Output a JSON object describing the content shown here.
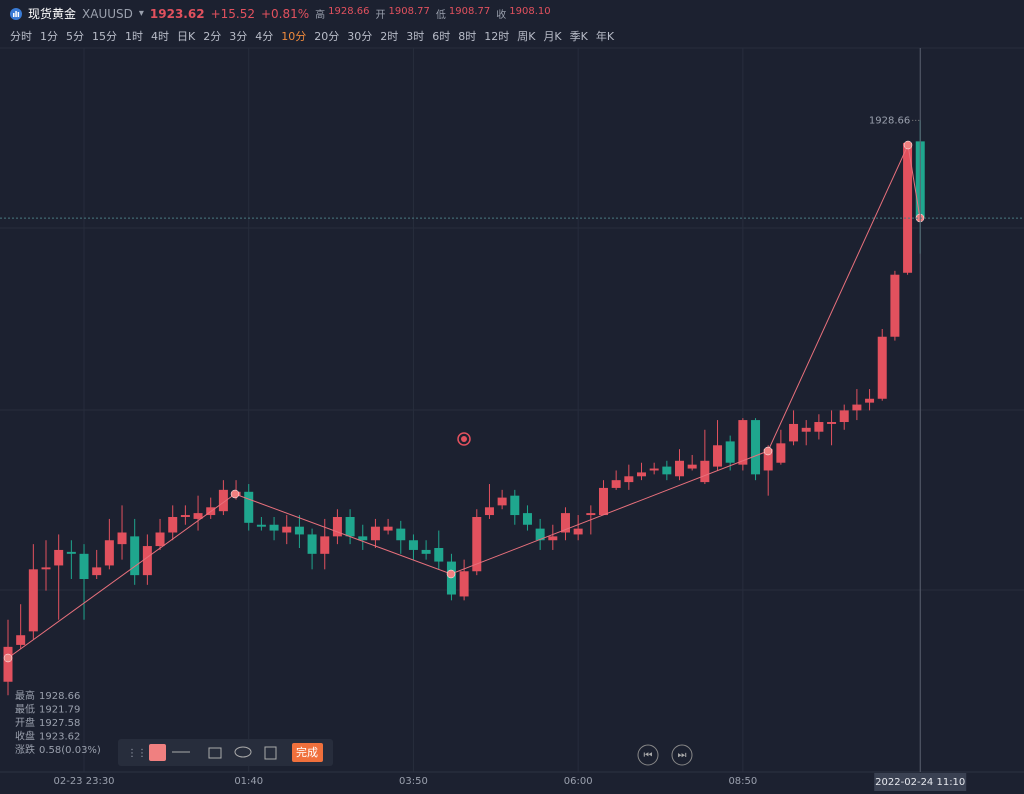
{
  "header": {
    "name": "现货黄金",
    "symbol": "XAUUSD",
    "price": "1923.62",
    "change": "+15.52",
    "change_pct": "+0.81%",
    "stats": [
      {
        "label": "高",
        "value": "1928.66"
      },
      {
        "label": "开",
        "value": "1908.77"
      },
      {
        "label": "低",
        "value": "1908.77"
      },
      {
        "label": "收",
        "value": "1908.10"
      }
    ]
  },
  "timeframes": {
    "items": [
      "分时",
      "1分",
      "5分",
      "15分",
      "1时",
      "4时",
      "日K",
      "2分",
      "3分",
      "4分",
      "10分",
      "20分",
      "30分",
      "2时",
      "3时",
      "6时",
      "8时",
      "12时",
      "周K",
      "月K",
      "季K",
      "年K"
    ],
    "active": 10
  },
  "chart_data": {
    "type": "candlestick",
    "up_color": "#e2515e",
    "down_color": "#1fa68e",
    "ylim": [
      1898.5,
      1932.5
    ],
    "high_label": "1928.66",
    "categories": [
      null,
      null,
      null,
      null,
      null,
      null,
      "02-23 23:30",
      null,
      null,
      null,
      null,
      null,
      null,
      null,
      null,
      null,
      null,
      null,
      null,
      "01:40",
      null,
      null,
      null,
      null,
      null,
      null,
      null,
      null,
      null,
      null,
      null,
      null,
      "03:50",
      null,
      null,
      null,
      null,
      null,
      null,
      null,
      null,
      null,
      null,
      null,
      null,
      "06:00",
      null,
      null,
      null,
      null,
      null,
      null,
      null,
      null,
      null,
      null,
      null,
      null,
      "08:50",
      null,
      null,
      null,
      null,
      null,
      null,
      null,
      null,
      null,
      null,
      null,
      null,
      null,
      "2022-02-24 11:10"
    ],
    "candles": {
      "open": [
        1899.7,
        1901.6,
        1902.3,
        1905.5,
        1905.7,
        1906.4,
        1906.3,
        1905.2,
        1905.7,
        1906.8,
        1907.2,
        1905.2,
        1906.7,
        1907.4,
        1908.2,
        1908.1,
        1908.3,
        1908.5,
        1909.3,
        1909.5,
        1907.8,
        1907.8,
        1907.4,
        1907.7,
        1907.3,
        1906.3,
        1907.2,
        1908.2,
        1907.2,
        1907.0,
        1907.5,
        1907.6,
        1907.0,
        1906.5,
        1906.6,
        1905.9,
        1904.1,
        1905.4,
        1908.3,
        1908.8,
        1909.3,
        1908.4,
        1907.6,
        1907.0,
        1907.4,
        1907.3,
        1908.3,
        1908.3,
        1909.7,
        1910.0,
        1910.3,
        1910.6,
        1910.8,
        1910.3,
        1910.7,
        1910.0,
        1910.8,
        1912.1,
        1910.9,
        1913.2,
        1910.6,
        1911.0,
        1912.1,
        1912.6,
        1912.6,
        1913.0,
        1913.1,
        1913.7,
        1914.1,
        1914.3,
        1917.5,
        1920.8,
        1927.58
      ],
      "close": [
        1901.5,
        1902.1,
        1905.5,
        1905.6,
        1906.5,
        1906.3,
        1905.0,
        1905.6,
        1907.0,
        1907.4,
        1905.2,
        1906.7,
        1907.4,
        1908.2,
        1908.3,
        1908.4,
        1908.7,
        1909.6,
        1909.5,
        1907.9,
        1907.7,
        1907.5,
        1907.7,
        1907.3,
        1906.3,
        1907.2,
        1908.2,
        1907.2,
        1907.0,
        1907.7,
        1907.7,
        1907.0,
        1906.5,
        1906.3,
        1905.9,
        1904.2,
        1905.4,
        1908.2,
        1908.7,
        1909.2,
        1908.3,
        1907.8,
        1907.0,
        1907.2,
        1908.4,
        1907.6,
        1908.4,
        1909.7,
        1910.1,
        1910.3,
        1910.5,
        1910.7,
        1910.4,
        1911.1,
        1910.9,
        1911.1,
        1911.9,
        1911.0,
        1913.2,
        1910.4,
        1911.7,
        1912.0,
        1913.0,
        1912.8,
        1913.1,
        1913.1,
        1913.7,
        1914.0,
        1914.3,
        1917.5,
        1920.7,
        1927.5,
        1923.62
      ],
      "high": [
        1902.9,
        1903.7,
        1906.8,
        1907.0,
        1907.3,
        1907.0,
        1906.8,
        1906.5,
        1908.1,
        1908.8,
        1908.1,
        1907.3,
        1908.1,
        1908.8,
        1908.8,
        1909.3,
        1909.2,
        1910.1,
        1910.1,
        1909.9,
        1908.2,
        1908.2,
        1908.3,
        1908.3,
        1907.6,
        1908.1,
        1908.6,
        1908.6,
        1907.8,
        1908.1,
        1908.1,
        1908.0,
        1907.3,
        1907.0,
        1907.5,
        1906.3,
        1906.0,
        1908.6,
        1909.9,
        1909.6,
        1909.6,
        1908.8,
        1908.1,
        1907.8,
        1908.7,
        1908.3,
        1908.8,
        1910.1,
        1910.6,
        1910.9,
        1911.0,
        1911.0,
        1911.1,
        1911.7,
        1911.4,
        1912.7,
        1913.2,
        1912.4,
        1913.3,
        1913.3,
        1911.9,
        1912.7,
        1913.7,
        1913.2,
        1913.5,
        1913.7,
        1914.0,
        1914.8,
        1914.8,
        1917.9,
        1920.9,
        1927.6,
        1928.66
      ],
      "low": [
        1899.0,
        1901.4,
        1901.9,
        1904.4,
        1902.9,
        1905.0,
        1902.9,
        1905.0,
        1905.5,
        1906.0,
        1904.7,
        1904.7,
        1906.5,
        1907.0,
        1907.8,
        1907.5,
        1908.1,
        1908.3,
        1909.1,
        1907.5,
        1907.5,
        1907.0,
        1906.8,
        1906.6,
        1905.5,
        1905.5,
        1906.8,
        1906.8,
        1906.5,
        1906.6,
        1907.3,
        1906.3,
        1906.0,
        1906.0,
        1905.5,
        1903.9,
        1903.9,
        1905.2,
        1908.1,
        1908.6,
        1907.8,
        1907.5,
        1906.5,
        1906.5,
        1907.0,
        1907.0,
        1907.3,
        1908.3,
        1909.6,
        1909.6,
        1910.1,
        1910.4,
        1910.1,
        1910.1,
        1910.6,
        1909.9,
        1910.6,
        1910.6,
        1910.6,
        1910.1,
        1909.3,
        1910.9,
        1911.9,
        1911.9,
        1912.2,
        1911.9,
        1912.7,
        1913.2,
        1913.7,
        1914.2,
        1917.3,
        1920.7,
        1921.79
      ]
    }
  },
  "info_panel": {
    "rows": [
      {
        "label": "最高",
        "value": "1928.66"
      },
      {
        "label": "最低",
        "value": "1921.79"
      },
      {
        "label": "开盘",
        "value": "1927.58"
      },
      {
        "label": "收盘",
        "value": "1923.62"
      },
      {
        "label": "涨跌",
        "value": "0.58(0.03%)"
      }
    ]
  },
  "toolbar": {
    "done": "完成"
  }
}
